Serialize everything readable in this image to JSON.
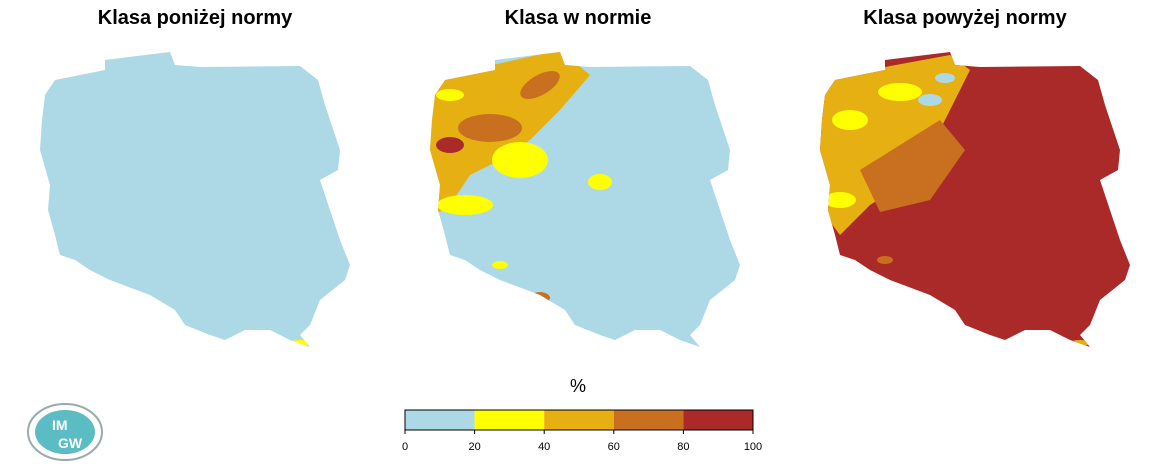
{
  "titles": [
    "Klasa poniżej normy",
    "Klasa w normie",
    "Klasa powyżej normy"
  ],
  "legend": {
    "unit": "%",
    "ticks": [
      0,
      20,
      40,
      60,
      80,
      100
    ],
    "colors": [
      "#add8e6",
      "#ffff00",
      "#e6b012",
      "#c87020",
      "#aa2a2a"
    ]
  },
  "logo": {
    "line1": "IM",
    "line2": "GW"
  }
}
